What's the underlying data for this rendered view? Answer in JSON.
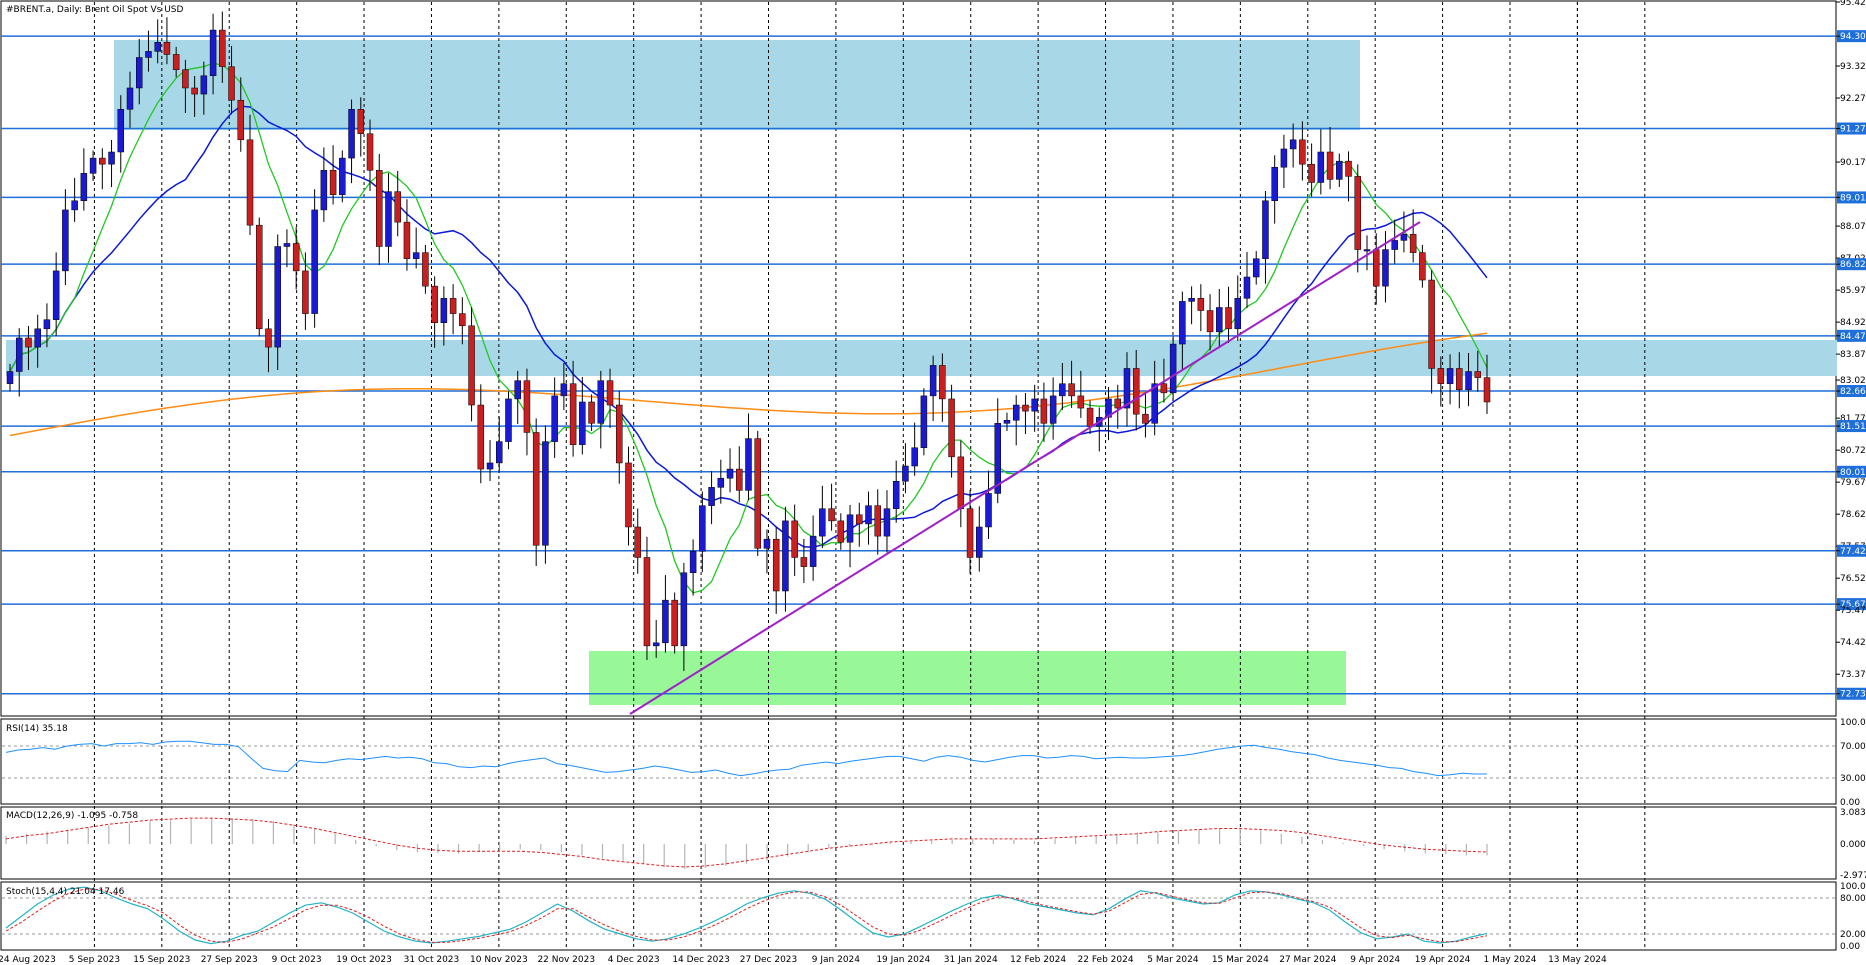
{
  "header": {
    "symbol": "#BRENT.a, Daily:  Brent Oil Spot Vs USD",
    "rsi_label": "RSI(14) 35.18",
    "macd_label": "MACD(12,26,9) -1.095 -0.758",
    "stoch_label": "Stoch(15,4,4) 21.04 17.46"
  },
  "colors": {
    "bull": "#1a1ad0",
    "bear": "#c82020",
    "ma_fast": "#22c822",
    "ma_mid": "#0a18d8",
    "ma_slow": "#ff8c14",
    "trend": "#a020c8",
    "level": "#1e6fd9",
    "zone_blue": "#a8d8e8",
    "zone_green": "#98f898",
    "rsi": "#1e90ff",
    "macd_hist": "#b4b4b4",
    "macd_signal": "#e02020",
    "stoch_main": "#20b4c8",
    "stoch_signal": "#e02020"
  },
  "chart_data": {
    "type": "candlestick",
    "title": "#BRENT.a, Daily:  Brent Oil Spot Vs USD",
    "ylim": [
      72.0,
      95.42
    ],
    "y_ticks": [
      95.42,
      94.3,
      93.32,
      92.27,
      91.27,
      90.17,
      89.01,
      88.07,
      87.02,
      86.82,
      85.97,
      84.92,
      84.47,
      83.87,
      83.02,
      82.66,
      81.77,
      81.51,
      80.72,
      80.01,
      79.67,
      78.62,
      77.57,
      77.42,
      76.52,
      75.67,
      75.47,
      74.42,
      73.37,
      72.73
    ],
    "x_ticks": [
      "24 Aug 2023",
      "5 Sep 2023",
      "15 Sep 2023",
      "27 Sep 2023",
      "9 Oct 2023",
      "19 Oct 2023",
      "31 Oct 2023",
      "10 Nov 2023",
      "22 Nov 2023",
      "4 Dec 2023",
      "14 Dec 2023",
      "27 Dec 2023",
      "9 Jan 2024",
      "19 Jan 2024",
      "31 Jan 2024",
      "12 Feb 2024",
      "22 Feb 2024",
      "5 Mar 2024",
      "15 Mar 2024",
      "27 Mar 2024",
      "9 Apr 2024",
      "19 Apr 2024",
      "1 May 2024",
      "13 May 2024"
    ],
    "closes": [
      83.3,
      84.4,
      84.1,
      84.7,
      85.0,
      86.6,
      88.6,
      88.9,
      89.8,
      90.3,
      90.1,
      90.5,
      91.9,
      92.6,
      93.6,
      93.8,
      94.1,
      93.7,
      93.2,
      92.6,
      92.4,
      93.0,
      94.5,
      93.3,
      92.2,
      90.9,
      88.1,
      84.7,
      84.1,
      87.4,
      87.5,
      86.6,
      85.2,
      88.6,
      89.9,
      89.1,
      90.3,
      91.9,
      91.1,
      89.9,
      87.4,
      89.2,
      88.2,
      87.0,
      87.2,
      86.1,
      84.9,
      85.7,
      85.2,
      84.8,
      82.2,
      80.1,
      80.3,
      81.0,
      82.4,
      83.0,
      81.3,
      77.6,
      81.0,
      82.5,
      82.9,
      80.9,
      82.3,
      81.6,
      83.0,
      82.2,
      80.3,
      78.2,
      77.2,
      74.3,
      74.4,
      75.8,
      74.3,
      76.7,
      77.4,
      78.9,
      79.5,
      79.8,
      80.1,
      79.4,
      81.1,
      77.5,
      77.8,
      76.1,
      78.4,
      77.2,
      76.9,
      77.9,
      78.8,
      78.4,
      77.7,
      78.6,
      78.3,
      78.9,
      77.9,
      78.8,
      79.7,
      80.2,
      80.8,
      82.5,
      83.5,
      82.4,
      80.5,
      78.8,
      77.2,
      78.2,
      79.3,
      81.6,
      81.7,
      82.2,
      82.0,
      82.4,
      81.6,
      82.5,
      82.9,
      82.5,
      82.1,
      81.5,
      81.8,
      82.4,
      82.1,
      83.4,
      81.9,
      81.6,
      82.9,
      82.6,
      84.2,
      85.6,
      85.7,
      85.3,
      84.6,
      85.4,
      84.7,
      85.7,
      86.4,
      87.0,
      88.9,
      90.0,
      90.6,
      90.9,
      90.1,
      89.5,
      90.5,
      89.6,
      90.2,
      89.7,
      87.3,
      87.3,
      86.1,
      87.3,
      87.6,
      87.8,
      87.2,
      86.3,
      83.4,
      82.9,
      83.4,
      82.7,
      83.3,
      83.1,
      82.3
    ]
  },
  "rsi": {
    "levels": [
      70,
      30
    ],
    "axis_labels": [
      "100.00",
      "70.00",
      "30.00",
      "0.00"
    ],
    "points": [
      62,
      65,
      66,
      68,
      66,
      70,
      72,
      73,
      70,
      73,
      73,
      74,
      72,
      75,
      76,
      76,
      74,
      72,
      72,
      69,
      55,
      42,
      39,
      38,
      52,
      50,
      49,
      52,
      54,
      53,
      55,
      57,
      55,
      56,
      54,
      49,
      48,
      44,
      43,
      45,
      44,
      48,
      51,
      53,
      55,
      48,
      46,
      43,
      40,
      37,
      38,
      40,
      42,
      45,
      43,
      40,
      37,
      38,
      40,
      36,
      33,
      35,
      38,
      40,
      41,
      46,
      48,
      50,
      48,
      51,
      53,
      55,
      57,
      57,
      54,
      51,
      56,
      58,
      56,
      52,
      50,
      53,
      56,
      58,
      58,
      55,
      56,
      58,
      57,
      54,
      55,
      56,
      55,
      55,
      56,
      57,
      58,
      60,
      63,
      66,
      68,
      70,
      71,
      68,
      66,
      63,
      61,
      59,
      55,
      52,
      50,
      48,
      46,
      43,
      42,
      38,
      36,
      33,
      34,
      36,
      35,
      35
    ]
  },
  "macd": {
    "axis_labels": [
      "3.083",
      "0.000",
      "-2.977"
    ],
    "hist": [
      0.8,
      1.0,
      1.2,
      1.4,
      1.6,
      1.8,
      2.0,
      2.2,
      2.3,
      2.4,
      2.5,
      2.5,
      2.4,
      2.2,
      1.9,
      1.5,
      1.0,
      0.4,
      -0.2,
      -0.6,
      -0.8,
      -0.9,
      -0.9,
      -0.8,
      -0.6,
      -0.5,
      -0.6,
      -0.8,
      -1.1,
      -1.4,
      -1.6,
      -1.9,
      -2.2,
      -2.4,
      -2.3,
      -2.1,
      -1.9,
      -1.6,
      -1.2,
      -0.8,
      -0.4,
      -0.2,
      -0.1,
      0.1,
      0.2,
      0.3,
      0.4,
      0.5,
      0.5,
      0.4,
      0.3,
      0.5,
      0.7,
      0.8,
      1.0,
      1.1,
      1.2,
      1.3,
      1.4,
      1.5,
      1.5,
      1.3,
      1.0,
      0.7,
      0.4,
      0.1,
      -0.2,
      -0.5,
      -0.7,
      -0.9,
      -1.0,
      -1.1,
      -1.1
    ],
    "signal": [
      0.5,
      0.8,
      1.0,
      1.3,
      1.6,
      1.9,
      2.1,
      2.3,
      2.4,
      2.5,
      2.5,
      2.4,
      2.3,
      2.1,
      1.8,
      1.5,
      1.1,
      0.7,
      0.3,
      -0.1,
      -0.4,
      -0.6,
      -0.7,
      -0.7,
      -0.7,
      -0.7,
      -0.8,
      -1.0,
      -1.2,
      -1.5,
      -1.7,
      -1.9,
      -2.1,
      -2.2,
      -2.1,
      -1.9,
      -1.6,
      -1.3,
      -1.0,
      -0.7,
      -0.4,
      -0.2,
      0.0,
      0.2,
      0.3,
      0.4,
      0.5,
      0.5,
      0.5,
      0.5,
      0.5,
      0.6,
      0.7,
      0.8,
      0.9,
      1.0,
      1.2,
      1.3,
      1.4,
      1.5,
      1.5,
      1.4,
      1.3,
      1.1,
      0.8,
      0.5,
      0.2,
      -0.1,
      -0.3,
      -0.5,
      -0.6,
      -0.7,
      -0.76
    ]
  },
  "stoch": {
    "levels": [
      80,
      20
    ],
    "axis_labels": [
      "100.00",
      "80.00",
      "20.00",
      "0.00"
    ],
    "main": [
      30,
      50,
      70,
      85,
      95,
      98,
      92,
      80,
      70,
      62,
      45,
      25,
      10,
      4,
      8,
      18,
      25,
      40,
      55,
      68,
      72,
      65,
      55,
      40,
      25,
      15,
      8,
      5,
      8,
      12,
      16,
      22,
      28,
      40,
      55,
      70,
      58,
      42,
      28,
      20,
      12,
      8,
      12,
      20,
      30,
      42,
      55,
      70,
      80,
      88,
      92,
      88,
      78,
      60,
      40,
      22,
      15,
      20,
      32,
      45,
      58,
      70,
      80,
      85,
      78,
      70,
      65,
      60,
      55,
      52,
      62,
      78,
      92,
      88,
      80,
      75,
      70,
      72,
      85,
      92,
      90,
      85,
      78,
      72,
      60,
      40,
      22,
      12,
      15,
      20,
      8,
      5,
      8,
      15,
      21
    ],
    "signal": [
      25,
      40,
      58,
      75,
      88,
      95,
      94,
      86,
      76,
      67,
      55,
      35,
      18,
      8,
      6,
      12,
      22,
      32,
      46,
      60,
      68,
      68,
      60,
      48,
      33,
      20,
      11,
      6,
      6,
      9,
      13,
      18,
      24,
      34,
      47,
      62,
      62,
      48,
      35,
      24,
      16,
      10,
      10,
      15,
      24,
      35,
      48,
      62,
      74,
      84,
      90,
      90,
      82,
      68,
      50,
      32,
      20,
      18,
      26,
      38,
      51,
      63,
      74,
      82,
      80,
      73,
      67,
      62,
      57,
      53,
      58,
      72,
      86,
      89,
      83,
      77,
      72,
      71,
      80,
      89,
      90,
      87,
      80,
      74,
      65,
      48,
      30,
      17,
      14,
      18,
      12,
      7,
      7,
      12,
      17
    ]
  }
}
